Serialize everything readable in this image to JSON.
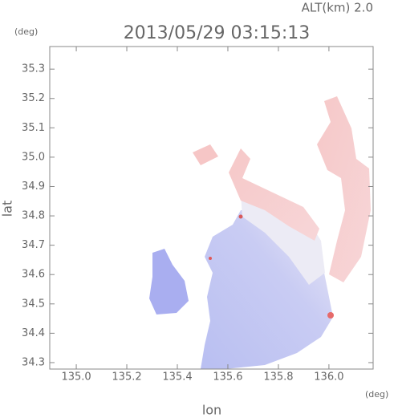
{
  "chart_data": {
    "type": "map",
    "title": "2013/05/29 03:15:13",
    "annotation": "ALT(km) 2.0",
    "x_label": "lon",
    "y_label": "lat",
    "x_unit": "(deg)",
    "y_unit": "(deg)",
    "xlim": [
      134.895,
      136.175
    ],
    "ylim": [
      34.278,
      35.377
    ],
    "xticks": [
      {
        "value": 135.0,
        "label": "135.0"
      },
      135.2,
      135.4,
      135.6,
      135.8,
      {
        "value": 136.0,
        "label": "136.0"
      }
    ],
    "yticks": [
      34.3,
      34.4,
      34.5,
      34.6,
      34.7,
      34.8,
      34.9,
      {
        "value": 35.0,
        "label": "35.0"
      },
      35.1,
      35.2,
      35.3
    ]
  }
}
